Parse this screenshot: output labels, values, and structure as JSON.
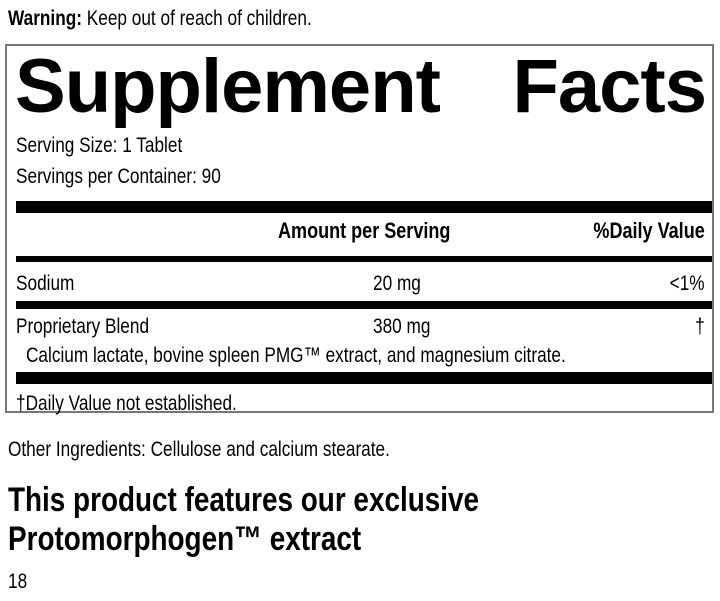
{
  "warning": {
    "label": "Warning:",
    "text": " Keep out of reach of children."
  },
  "facts": {
    "title_left": "Supplement",
    "title_right": "Facts",
    "serving_size": "Serving Size: 1 Tablet",
    "servings_per_container": "Servings per Container: 90",
    "header": {
      "amount": "Amount per Serving",
      "dv": "%Daily Value"
    },
    "rows": [
      {
        "name": "Sodium",
        "amount": "20 mg",
        "dv": "<1%"
      },
      {
        "name": "Proprietary Blend",
        "amount": "380 mg",
        "dv": "†",
        "detail": "Calcium lactate, bovine spleen PMG™ extract, and magnesium citrate."
      }
    ],
    "footnote": "†Daily Value not established."
  },
  "other_ingredients": "Other Ingredients: Cellulose and calcium stearate.",
  "feature_heading": [
    "This product features our exclusive",
    "Protomorphogen™ extract"
  ],
  "page_number": "18"
}
